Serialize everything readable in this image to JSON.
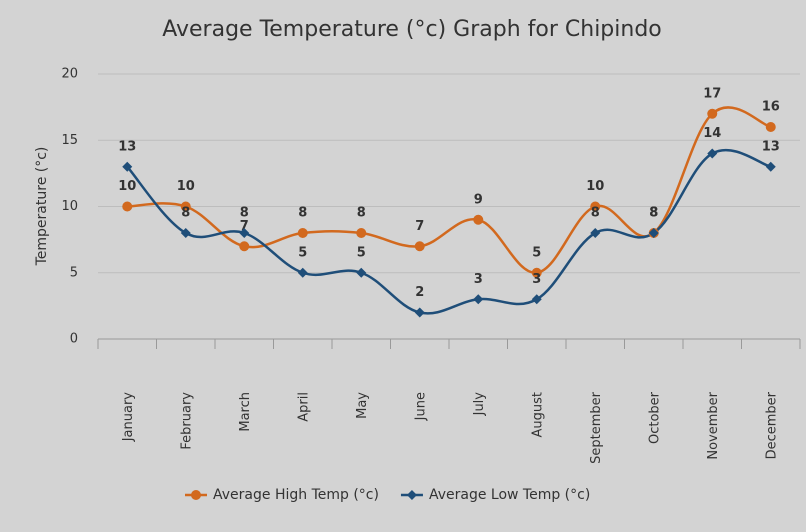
{
  "chart_data": {
    "type": "line",
    "title": "Average Temperature (°c) Graph for Chipindo",
    "ylabel": "Temperature (°c)",
    "categories": [
      "January",
      "February",
      "March",
      "April",
      "May",
      "June",
      "July",
      "August",
      "September",
      "October",
      "November",
      "December"
    ],
    "series": [
      {
        "name": "Average High Temp (°c)",
        "color": "#d2691e",
        "marker": "circle",
        "values": [
          10,
          10,
          7,
          8,
          8,
          7,
          9,
          5,
          10,
          8,
          17,
          16
        ]
      },
      {
        "name": "Average Low Temp (°c)",
        "color": "#1f4e79",
        "marker": "diamond",
        "values": [
          13,
          8,
          8,
          5,
          5,
          2,
          3,
          3,
          8,
          8,
          14,
          13
        ]
      }
    ],
    "ylim": [
      0,
      20
    ],
    "yticks": [
      0,
      5,
      10,
      15,
      20
    ],
    "grid": true,
    "legend": "bottom"
  }
}
